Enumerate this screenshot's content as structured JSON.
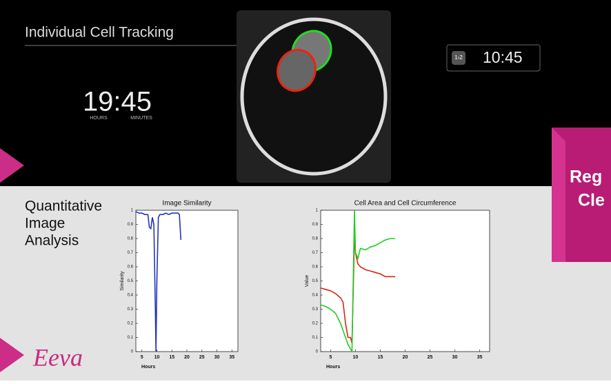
{
  "title": "Individual Cell Tracking",
  "clock": {
    "time": "19:45",
    "hours_label": "HOURS",
    "minutes_label": "MINUTES"
  },
  "timer": {
    "icon": "1›2",
    "time": "10:45"
  },
  "analysis_label": [
    "Quantitative",
    "Image",
    "Analysis"
  ],
  "side_box": [
    "Reg",
    "Cle"
  ],
  "logo": "Eeva",
  "chart_data": [
    {
      "type": "line",
      "title": "Image Similarity",
      "xlabel": "Hours",
      "ylabel": "Similarity",
      "xlim": [
        3,
        37
      ],
      "xticks": [
        5,
        10,
        15,
        20,
        25,
        30,
        35
      ],
      "ylim": [
        0,
        1
      ],
      "yticks": [
        0,
        0.1,
        0.2,
        0.3,
        0.4,
        0.5,
        0.6,
        0.7,
        0.8,
        0.9,
        1
      ],
      "x": [
        3,
        4,
        5,
        6,
        7,
        7.5,
        8,
        8.5,
        9,
        9.5,
        9.7,
        10,
        10.5,
        11,
        12,
        13,
        14,
        15,
        16,
        17,
        17.5,
        18
      ],
      "series": [
        {
          "color": "#2233bb",
          "values": [
            0.99,
            0.98,
            0.98,
            0.97,
            0.97,
            0.88,
            0.87,
            0.95,
            0.9,
            0.3,
            0,
            0.5,
            0.95,
            0.97,
            0.97,
            0.98,
            0.97,
            0.98,
            0.98,
            0.98,
            0.97,
            0.79
          ]
        }
      ]
    },
    {
      "type": "line",
      "title": "Cell Area and Cell Circumference",
      "xlabel": "Hours",
      "ylabel": "Value",
      "xlim": [
        3,
        37
      ],
      "xticks": [
        5,
        10,
        15,
        20,
        25,
        30,
        35
      ],
      "ylim": [
        0,
        1
      ],
      "yticks": [
        0,
        0.1,
        0.2,
        0.3,
        0.4,
        0.5,
        0.6,
        0.7,
        0.8,
        0.9,
        1
      ],
      "x": [
        3,
        4,
        5,
        6,
        7,
        7.5,
        8,
        8.5,
        9,
        9.3,
        9.6,
        9.8,
        10,
        10.5,
        11,
        12,
        13,
        14,
        15,
        16,
        17,
        18
      ],
      "series": [
        {
          "color": "#dd2211",
          "values": [
            0.45,
            0.44,
            0.43,
            0.41,
            0.38,
            0.35,
            0.2,
            0.1,
            0.1,
            0.06,
            0.5,
            0.84,
            0.7,
            0.62,
            0.6,
            0.58,
            0.57,
            0.56,
            0.55,
            0.53,
            0.53,
            0.53
          ]
        },
        {
          "color": "#22cc22",
          "values": [
            0.33,
            0.32,
            0.3,
            0.27,
            0.2,
            0.15,
            0.1,
            0.05,
            0.02,
            0,
            0.6,
            1,
            0.7,
            0.66,
            0.73,
            0.72,
            0.74,
            0.75,
            0.77,
            0.79,
            0.8,
            0.8
          ]
        }
      ]
    }
  ]
}
